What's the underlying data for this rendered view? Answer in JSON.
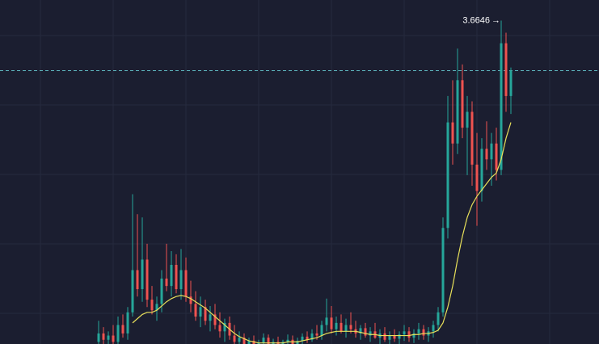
{
  "chart_data": {
    "type": "candlestick",
    "colors": {
      "up": "#26a69a",
      "down": "#ef5350",
      "ma": "#e8e05a",
      "price_line": "#5fb8c0"
    },
    "ylim": [
      0.6,
      3.86
    ],
    "marker": "→",
    "open": [
      0.62,
      0.7,
      0.64,
      0.68,
      0.62,
      0.78,
      0.7,
      0.9,
      1.3,
      1.12,
      1.4,
      1.02,
      0.92,
      0.98,
      1.22,
      1.15,
      1.35,
      1.12,
      1.3,
      1.05,
      0.98,
      0.86,
      0.95,
      0.82,
      0.88,
      0.78,
      0.72,
      0.8,
      0.68,
      0.62,
      0.66,
      0.6,
      0.63,
      0.58,
      0.61,
      0.66,
      0.6,
      0.62,
      0.59,
      0.62,
      0.64,
      0.6,
      0.63,
      0.67,
      0.64,
      0.7,
      0.68,
      0.78,
      0.85,
      0.74,
      0.8,
      0.72,
      0.78,
      0.74,
      0.7,
      0.75,
      0.68,
      0.72,
      0.66,
      0.7,
      0.64,
      0.68,
      0.65,
      0.69,
      0.72,
      0.66,
      0.7,
      0.74,
      0.68,
      0.72,
      0.78,
      0.9,
      1.7,
      2.7,
      2.5,
      3.1,
      2.65,
      2.8,
      2.3,
      2.05,
      2.45,
      2.35,
      2.5,
      2.25,
      3.45,
      2.95
    ],
    "high": [
      0.82,
      0.76,
      0.72,
      0.78,
      0.86,
      0.88,
      0.95,
      2.02,
      1.83,
      1.8,
      1.55,
      1.15,
      1.05,
      1.3,
      1.55,
      1.48,
      1.45,
      1.5,
      1.42,
      1.2,
      1.1,
      1.05,
      1.02,
      0.96,
      0.98,
      0.9,
      0.84,
      0.86,
      0.78,
      0.72,
      0.7,
      0.66,
      0.68,
      0.64,
      0.7,
      0.69,
      0.65,
      0.67,
      0.64,
      0.69,
      0.68,
      0.66,
      0.7,
      0.72,
      0.74,
      0.78,
      0.82,
      1.03,
      0.96,
      0.86,
      0.88,
      0.84,
      0.9,
      0.82,
      0.78,
      0.8,
      0.76,
      0.8,
      0.74,
      0.76,
      0.72,
      0.74,
      0.72,
      0.78,
      0.76,
      0.74,
      0.8,
      0.78,
      0.76,
      0.82,
      0.95,
      1.8,
      2.95,
      3.1,
      3.4,
      3.25,
      2.95,
      2.9,
      2.6,
      2.55,
      2.71,
      2.6,
      2.65,
      3.6646,
      3.55,
      3.22
    ],
    "low": [
      0.58,
      0.6,
      0.58,
      0.6,
      0.6,
      0.66,
      0.64,
      0.86,
      1.05,
      1.0,
      0.95,
      0.88,
      0.82,
      0.9,
      1.1,
      1.05,
      1.08,
      1.02,
      1.0,
      0.9,
      0.82,
      0.76,
      0.78,
      0.72,
      0.74,
      0.66,
      0.62,
      0.64,
      0.58,
      0.56,
      0.58,
      0.55,
      0.56,
      0.54,
      0.57,
      0.58,
      0.55,
      0.56,
      0.54,
      0.58,
      0.57,
      0.56,
      0.6,
      0.61,
      0.62,
      0.64,
      0.64,
      0.72,
      0.7,
      0.68,
      0.7,
      0.66,
      0.7,
      0.66,
      0.64,
      0.66,
      0.62,
      0.65,
      0.6,
      0.62,
      0.6,
      0.62,
      0.6,
      0.63,
      0.62,
      0.61,
      0.64,
      0.64,
      0.62,
      0.66,
      0.72,
      0.86,
      1.6,
      2.3,
      2.4,
      2.55,
      2.2,
      2.1,
      1.72,
      1.95,
      2.25,
      2.1,
      2.15,
      2.2,
      2.8,
      2.78
    ],
    "close": [
      0.7,
      0.64,
      0.68,
      0.62,
      0.78,
      0.7,
      0.9,
      1.3,
      1.12,
      1.4,
      1.02,
      0.92,
      0.98,
      1.22,
      1.15,
      1.35,
      1.12,
      1.3,
      1.05,
      0.98,
      0.86,
      0.95,
      0.82,
      0.88,
      0.78,
      0.72,
      0.8,
      0.68,
      0.62,
      0.66,
      0.6,
      0.63,
      0.58,
      0.61,
      0.66,
      0.6,
      0.62,
      0.59,
      0.62,
      0.64,
      0.6,
      0.63,
      0.67,
      0.64,
      0.7,
      0.68,
      0.78,
      0.85,
      0.74,
      0.8,
      0.72,
      0.78,
      0.74,
      0.7,
      0.75,
      0.68,
      0.72,
      0.66,
      0.7,
      0.64,
      0.68,
      0.65,
      0.69,
      0.72,
      0.66,
      0.7,
      0.74,
      0.68,
      0.72,
      0.78,
      0.9,
      1.7,
      2.7,
      2.5,
      3.1,
      2.65,
      2.8,
      2.3,
      2.05,
      2.45,
      2.35,
      2.5,
      2.25,
      3.45,
      2.95,
      3.19
    ],
    "ma": [
      null,
      null,
      null,
      null,
      null,
      null,
      null,
      0.8,
      0.84,
      0.88,
      0.9,
      0.9,
      0.92,
      0.96,
      1.0,
      1.03,
      1.05,
      1.06,
      1.05,
      1.03,
      1.0,
      0.97,
      0.94,
      0.9,
      0.86,
      0.82,
      0.78,
      0.74,
      0.7,
      0.67,
      0.65,
      0.63,
      0.62,
      0.61,
      0.61,
      0.61,
      0.61,
      0.61,
      0.61,
      0.62,
      0.62,
      0.62,
      0.63,
      0.64,
      0.65,
      0.66,
      0.68,
      0.7,
      0.71,
      0.72,
      0.72,
      0.72,
      0.72,
      0.72,
      0.71,
      0.7,
      0.69,
      0.69,
      0.68,
      0.68,
      0.68,
      0.68,
      0.68,
      0.68,
      0.68,
      0.69,
      0.69,
      0.7,
      0.7,
      0.71,
      0.73,
      0.8,
      0.95,
      1.15,
      1.4,
      1.62,
      1.8,
      1.92,
      2.0,
      2.06,
      2.12,
      2.18,
      2.22,
      2.35,
      2.55,
      2.7
    ]
  }
}
